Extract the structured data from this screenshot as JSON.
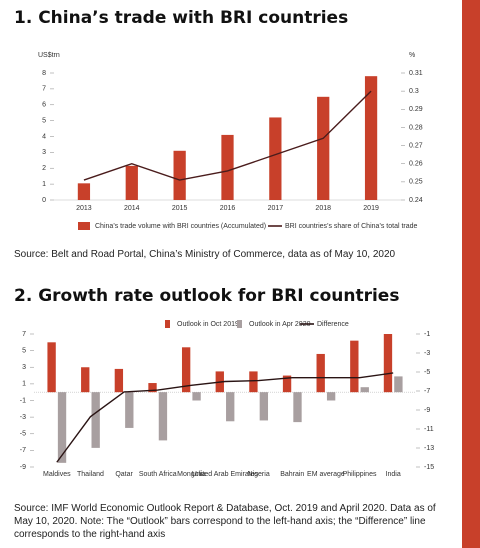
{
  "chart_data": [
    {
      "type": "bar",
      "title": "1. China’s trade with BRI countries",
      "ylabel": "US$trn",
      "y2label": "%",
      "categories": [
        "2013",
        "2014",
        "2015",
        "2016",
        "2017",
        "2018",
        "2019"
      ],
      "series": [
        {
          "name": "China’s trade volume with BRI countries (Accumulated)",
          "color": "#c8402a",
          "values": [
            1.05,
            2.15,
            3.1,
            4.1,
            5.2,
            6.5,
            7.8
          ]
        },
        {
          "name": "BRI countries’s share of China’s total trade",
          "color": "#4a1c1c",
          "type": "line",
          "axis": "y2",
          "values": [
            0.251,
            0.26,
            0.251,
            0.256,
            0.265,
            0.274,
            0.3
          ]
        }
      ],
      "ylim": [
        0,
        8
      ],
      "yticks": [
        0,
        1,
        2,
        3,
        4,
        5,
        6,
        7,
        8
      ],
      "y2lim": [
        0.24,
        0.31
      ],
      "y2ticks": [
        0.24,
        0.25,
        0.26,
        0.27,
        0.28,
        0.29,
        0.3,
        0.31
      ],
      "source": "Source: Belt and Road Portal, China’s Ministry of Commerce, data as of May 10, 2020"
    },
    {
      "type": "bar",
      "title": "2. Growth rate outlook for BRI countries",
      "categories": [
        "Maldives",
        "Thailand",
        "Qatar",
        "South Africa",
        "Mongolia",
        "United Arab Emirates",
        "Nigeria",
        "Bahrain",
        "EM average",
        "Philippines",
        "India"
      ],
      "series": [
        {
          "name": "Outlook in Oct 2019",
          "color": "#c8402a",
          "values": [
            6.0,
            3.0,
            2.8,
            1.1,
            5.4,
            2.5,
            2.5,
            2.0,
            4.6,
            6.2,
            7.0
          ]
        },
        {
          "name": "Outlook in Apr 2020",
          "color": "#a89fa0",
          "values": [
            -8.5,
            -6.7,
            -4.3,
            -5.8,
            -1.0,
            -3.5,
            -3.4,
            -3.6,
            -1.0,
            0.6,
            1.9
          ]
        },
        {
          "name": "Difference",
          "color": "#2a1414",
          "type": "line",
          "axis": "y2",
          "values": [
            -14.5,
            -9.7,
            -7.1,
            -6.9,
            -6.4,
            -6.0,
            -5.9,
            -5.6,
            -5.6,
            -5.6,
            -5.1
          ]
        }
      ],
      "ylim": [
        -9,
        7
      ],
      "yticks": [
        -9,
        -7,
        -5,
        -3,
        -1,
        1,
        3,
        5,
        7
      ],
      "y2lim": [
        -15,
        -1
      ],
      "y2ticks": [
        -15,
        -13,
        -11,
        -9,
        -7,
        -5,
        -3,
        -1
      ],
      "source": "Source: IMF World Economic Outlook Report & Database, Oct. 2019 and April 2020. Data as of May 10, 2020. Note: The “Outlook” bars correspond to the left-hand axis; the “Difference” line corresponds to the right-hand axis"
    }
  ]
}
